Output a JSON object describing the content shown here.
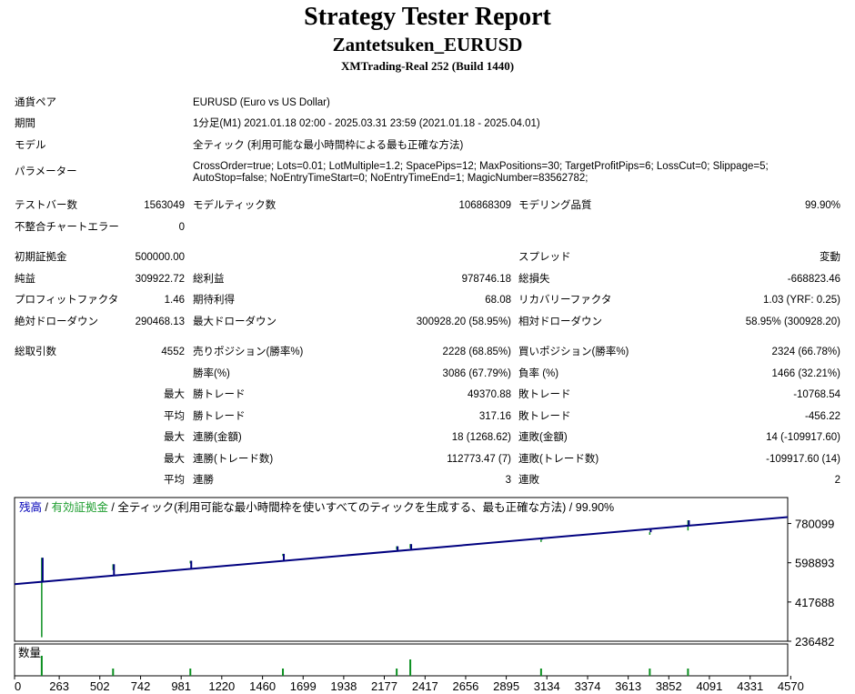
{
  "header": {
    "title": "Strategy Tester Report",
    "ea_name": "Zantetsuken_EURUSD",
    "server": "XMTrading-Real 252 (Build 1440)"
  },
  "info": {
    "symbol_label": "通貨ペア",
    "symbol_value": "EURUSD (Euro vs US Dollar)",
    "period_label": "期間",
    "period_value": "1分足(M1) 2021.01.18 02:00 - 2025.03.31 23:59 (2021.01.18 - 2025.04.01)",
    "model_label": "モデル",
    "model_value": "全ティック (利用可能な最小時間枠による最も正確な方法)",
    "params_label": "パラメーター",
    "params_line1": "CrossOrder=true; Lots=0.01; LotMultiple=1.2; SpacePips=12; MaxPositions=30; TargetProfitPips=6; LossCut=0; Slippage=5;",
    "params_line2": "AutoStop=false; NoEntryTimeStart=0; NoEntryTimeEnd=1; MagicNumber=83562782;"
  },
  "stats": {
    "bars_label": "テストバー数",
    "bars": "1563049",
    "ticks_label": "モデルティック数",
    "ticks": "106868309",
    "quality_label": "モデリング品質",
    "quality": "99.90%",
    "mismatch_label": "不整合チャートエラー",
    "mismatch": "0",
    "deposit_label": "初期証拠金",
    "deposit": "500000.00",
    "spread_label": "スプレッド",
    "spread": "変動",
    "net_label": "純益",
    "net": "309922.72",
    "gross_profit_label": "総利益",
    "gross_profit": "978746.18",
    "gross_loss_label": "総損失",
    "gross_loss": "-668823.46",
    "pf_label": "プロフィットファクタ",
    "pf": "1.46",
    "payoff_label": "期待利得",
    "payoff": "68.08",
    "recovery_label": "リカバリーファクタ",
    "recovery": "1.03 (YRF: 0.25)",
    "abs_dd_label": "絶対ドローダウン",
    "abs_dd": "290468.13",
    "max_dd_label": "最大ドローダウン",
    "max_dd": "300928.20 (58.95%)",
    "rel_dd_label": "相対ドローダウン",
    "rel_dd": "58.95% (300928.20)",
    "trades_label": "総取引数",
    "trades": "4552",
    "short_label": "売りポジション(勝率%)",
    "short": "2228 (68.85%)",
    "long_label": "買いポジション(勝率%)",
    "long": "2324 (66.78%)",
    "win_label": "勝率(%)",
    "win": "3086 (67.79%)",
    "loss_label": "負率 (%)",
    "loss": "1466 (32.21%)",
    "max_label": "最大",
    "avg_label": "平均",
    "win_trade_label": "勝トレード",
    "loss_trade_label": "敗トレード",
    "max_win": "49370.88",
    "max_loss": "-10768.54",
    "avg_win": "317.16",
    "avg_loss": "-456.22",
    "cw_amount_label": "連勝(金額)",
    "cw_amount": "18 (1268.62)",
    "cl_amount_label": "連敗(金額)",
    "cl_amount": "14 (-109917.60)",
    "cw_trades_label": "連勝(トレード数)",
    "cw_trades": "112773.47 (7)",
    "cl_trades_label": "連敗(トレード数)",
    "cl_trades": "-109917.60 (14)",
    "cw_label": "連勝",
    "cw": "3",
    "cl_label": "連敗",
    "cl": "2"
  },
  "chart_data": {
    "type": "line",
    "legend": {
      "balance": "残高",
      "sep": " / ",
      "equity": "有効証拠金",
      "rest": " / 全ティック(利用可能な最小時間枠を使いすべてのティックを生成する、最も正確な方法) / 99.90%"
    },
    "volume_label": "数量",
    "y_ticks": [
      780099,
      598893,
      417688,
      236482
    ],
    "x_ticks": [
      0,
      263,
      502,
      742,
      981,
      1220,
      1460,
      1699,
      1938,
      2177,
      2417,
      2656,
      2895,
      3134,
      3374,
      3613,
      3852,
      4091,
      4331,
      4570
    ],
    "xlim": [
      0,
      4552
    ],
    "ylim": [
      236482,
      900000
    ],
    "balance": {
      "x": [
        0,
        4552
      ],
      "y": [
        500000,
        809923
      ]
    },
    "equity_spikes": [
      {
        "x": 160,
        "high": 622000,
        "low": 255000
      },
      {
        "x": 580,
        "high": 592000,
        "low": 565000
      },
      {
        "x": 1035,
        "high": 608000,
        "low": 596000
      },
      {
        "x": 1580,
        "high": 640000,
        "low": 630000
      },
      {
        "x": 2250,
        "high": 675000,
        "low": 660000
      },
      {
        "x": 2330,
        "high": 685000,
        "low": 666000
      },
      {
        "x": 3100,
        "high": 706000,
        "low": 695000
      },
      {
        "x": 3740,
        "high": 740000,
        "low": 728000
      },
      {
        "x": 3965,
        "high": 795000,
        "low": 748000
      }
    ],
    "colors": {
      "balance": "#00007f",
      "equity": "#0a8f1f",
      "legend_balance": "#0000b8",
      "legend_equity": "#1f9e30"
    }
  }
}
